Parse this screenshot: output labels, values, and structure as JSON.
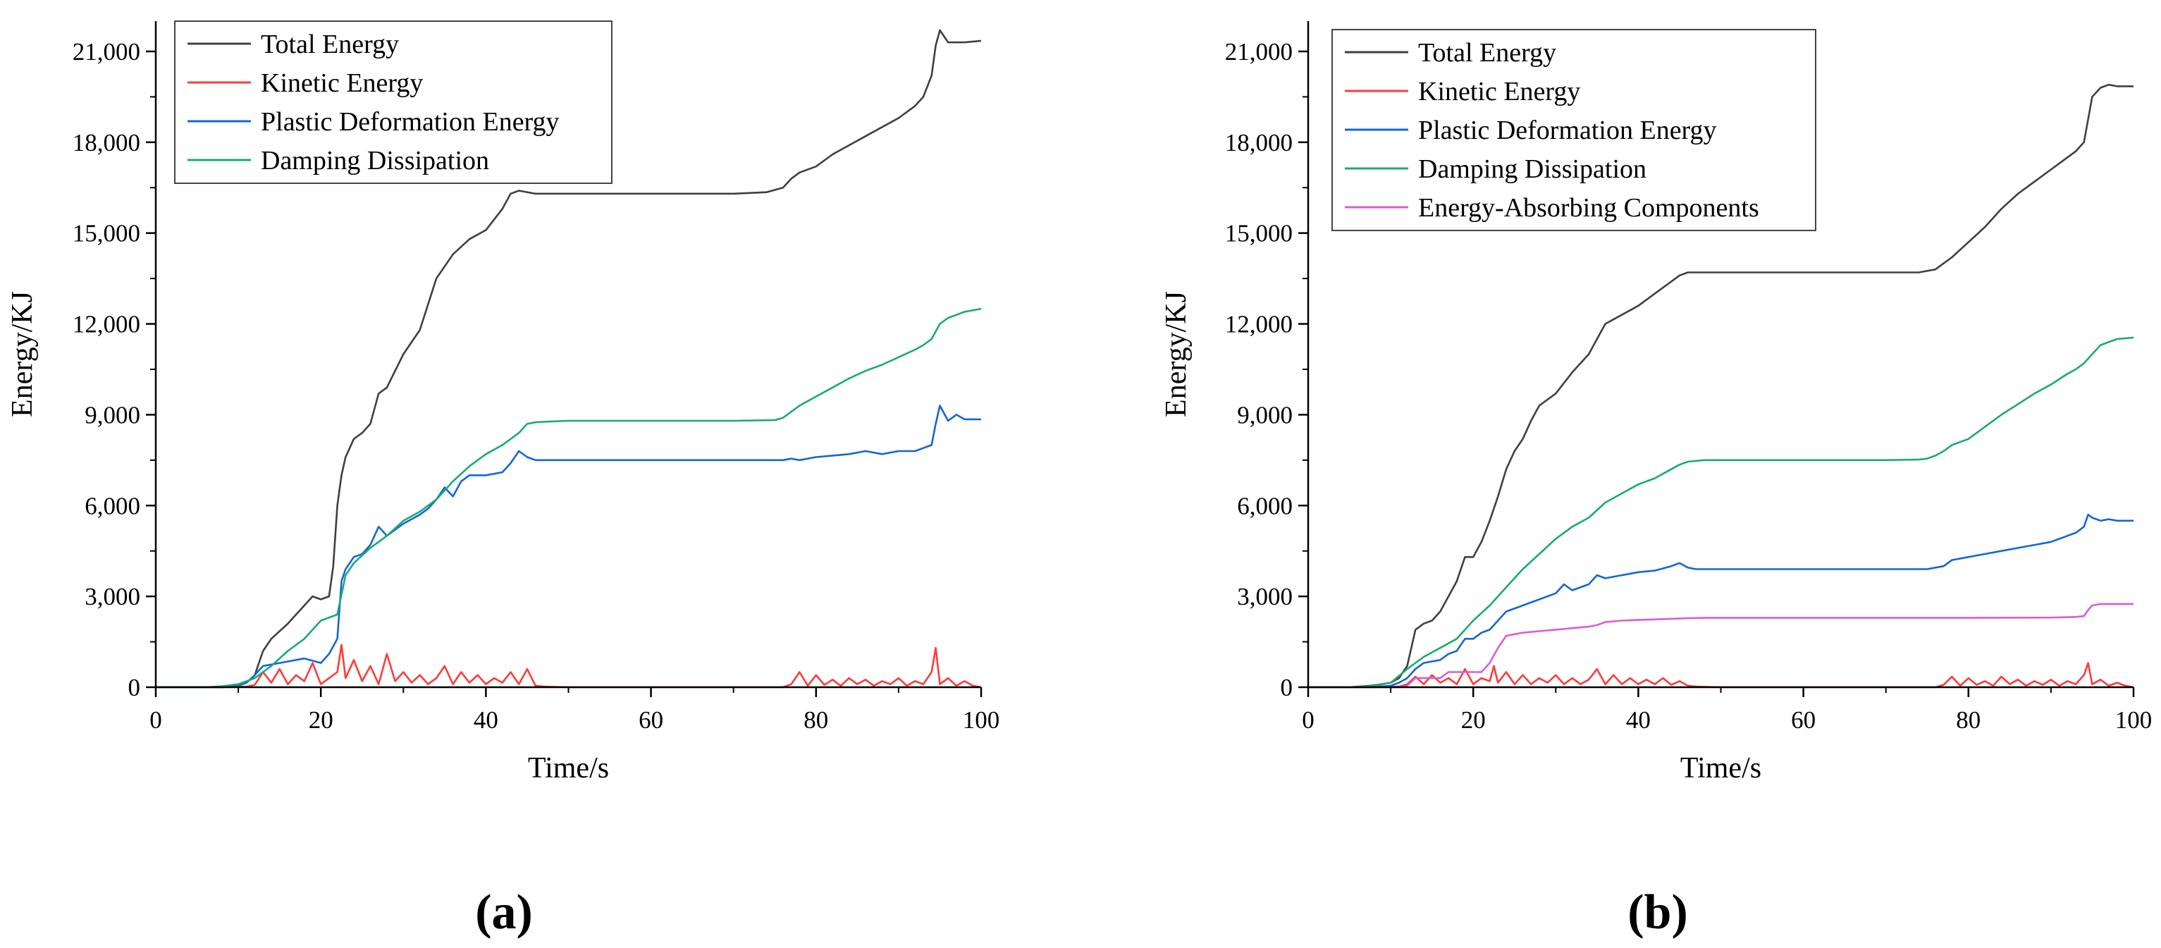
{
  "chart_data": [
    {
      "type": "line",
      "panel_label": "(a)",
      "title": "",
      "xlabel": "Time/s",
      "ylabel": "Energy/KJ",
      "xlim": [
        0,
        100
      ],
      "ylim": [
        0,
        22000
      ],
      "xticks": [
        0,
        20,
        40,
        60,
        80,
        100
      ],
      "yticks": [
        0,
        3000,
        6000,
        9000,
        12000,
        15000,
        18000,
        21000
      ],
      "xtick_labels": [
        "0",
        "20",
        "40",
        "60",
        "80",
        "100"
      ],
      "ytick_labels": [
        "0",
        "3,000",
        "6,000",
        "9,000",
        "12,000",
        "15,000",
        "18,000",
        "21,000"
      ],
      "grid": false,
      "legend_position": "top-left",
      "series": [
        {
          "name": "Total Energy",
          "color": "#404040",
          "x": [
            0,
            8,
            10,
            11,
            12,
            13,
            14,
            16,
            18,
            19,
            20,
            21,
            21.5,
            22,
            22.5,
            23,
            24,
            25,
            26,
            27,
            28,
            30,
            32,
            34,
            36,
            38,
            40,
            42,
            43,
            44,
            45,
            46,
            48,
            50,
            55,
            60,
            65,
            70,
            74,
            76,
            77,
            78,
            80,
            82,
            84,
            86,
            88,
            90,
            92,
            93,
            94,
            94.5,
            95,
            96,
            98,
            100
          ],
          "y": [
            0,
            0,
            60,
            150,
            400,
            1200,
            1600,
            2100,
            2700,
            3000,
            2900,
            3000,
            4000,
            6000,
            7000,
            7600,
            8200,
            8400,
            8700,
            9700,
            9900,
            11000,
            11800,
            13500,
            14300,
            14800,
            15100,
            15800,
            16300,
            16400,
            16350,
            16300,
            16300,
            16300,
            16300,
            16300,
            16300,
            16300,
            16350,
            16500,
            16800,
            17000,
            17200,
            17600,
            17900,
            18200,
            18500,
            18800,
            19200,
            19500,
            20200,
            21200,
            21700,
            21300,
            21300,
            21350
          ]
        },
        {
          "name": "Kinetic Energy",
          "color": "#ff3b3b",
          "x": [
            0,
            8,
            11,
            12,
            13,
            14,
            15,
            16,
            17,
            18,
            19,
            20,
            21,
            22,
            22.5,
            23,
            24,
            25,
            26,
            27,
            28,
            29,
            30,
            31,
            32,
            33,
            34,
            35,
            36,
            37,
            38,
            39,
            40,
            41,
            42,
            43,
            44,
            45,
            46,
            47,
            50,
            60,
            70,
            76,
            77,
            78,
            79,
            80,
            81,
            82,
            83,
            84,
            85,
            86,
            87,
            88,
            89,
            90,
            91,
            92,
            93,
            94,
            94.5,
            95,
            96,
            97,
            98,
            99,
            100
          ],
          "y": [
            0,
            0,
            20,
            80,
            500,
            150,
            600,
            100,
            400,
            200,
            800,
            100,
            300,
            500,
            1400,
            300,
            900,
            200,
            700,
            100,
            1100,
            200,
            500,
            150,
            400,
            100,
            300,
            700,
            100,
            500,
            150,
            400,
            100,
            300,
            150,
            500,
            100,
            600,
            50,
            20,
            0,
            0,
            0,
            0,
            100,
            500,
            50,
            400,
            80,
            250,
            50,
            300,
            100,
            250,
            50,
            200,
            100,
            300,
            50,
            200,
            100,
            500,
            1300,
            100,
            300,
            50,
            200,
            50,
            0
          ]
        },
        {
          "name": "Plastic Deformation Energy",
          "color": "#1566d4",
          "x": [
            0,
            8,
            10,
            11,
            12,
            13,
            14,
            16,
            18,
            20,
            21,
            22,
            22.5,
            23,
            24,
            25,
            26,
            27,
            28,
            30,
            32,
            33,
            34,
            35,
            36,
            37,
            38,
            40,
            42,
            43,
            44,
            45,
            46,
            48,
            50,
            60,
            70,
            76,
            77,
            78,
            80,
            82,
            84,
            86,
            88,
            90,
            92,
            93,
            94,
            94.5,
            95,
            96,
            97,
            98,
            100
          ],
          "y": [
            0,
            0,
            50,
            150,
            400,
            700,
            750,
            850,
            950,
            800,
            1100,
            1600,
            3500,
            3900,
            4300,
            4400,
            4700,
            5300,
            5000,
            5400,
            5700,
            5900,
            6200,
            6600,
            6300,
            6800,
            7000,
            7000,
            7100,
            7400,
            7800,
            7600,
            7500,
            7500,
            7500,
            7500,
            7500,
            7500,
            7550,
            7500,
            7600,
            7650,
            7700,
            7800,
            7700,
            7800,
            7800,
            7900,
            8000,
            8700,
            9300,
            8800,
            9000,
            8850,
            8850
          ]
        },
        {
          "name": "Damping Dissipation",
          "color": "#1aab73",
          "x": [
            0,
            6,
            8,
            10,
            12,
            14,
            16,
            18,
            20,
            22,
            23,
            24,
            26,
            28,
            30,
            32,
            34,
            36,
            38,
            40,
            42,
            44,
            45,
            46,
            48,
            50,
            60,
            70,
            75,
            76,
            77,
            78,
            80,
            82,
            84,
            86,
            88,
            90,
            92,
            93,
            94,
            95,
            96,
            98,
            100
          ],
          "y": [
            0,
            0,
            30,
            100,
            300,
            700,
            1200,
            1600,
            2200,
            2400,
            3700,
            4100,
            4600,
            5000,
            5500,
            5800,
            6200,
            6800,
            7300,
            7700,
            8000,
            8400,
            8700,
            8750,
            8780,
            8800,
            8800,
            8800,
            8820,
            8900,
            9100,
            9300,
            9600,
            9900,
            10200,
            10450,
            10650,
            10900,
            11150,
            11300,
            11500,
            12000,
            12200,
            12400,
            12500
          ]
        }
      ]
    },
    {
      "type": "line",
      "panel_label": "(b)",
      "title": "",
      "xlabel": "Time/s",
      "ylabel": "Energy/KJ",
      "xlim": [
        0,
        100
      ],
      "ylim": [
        0,
        22000
      ],
      "xticks": [
        0,
        20,
        40,
        60,
        80,
        100
      ],
      "yticks": [
        0,
        3000,
        6000,
        9000,
        12000,
        15000,
        18000,
        21000
      ],
      "xtick_labels": [
        "0",
        "20",
        "40",
        "60",
        "80",
        "100"
      ],
      "ytick_labels": [
        "0",
        "3,000",
        "6,000",
        "9,000",
        "12,000",
        "15,000",
        "18,000",
        "21,000"
      ],
      "grid": false,
      "legend_position": "top-left",
      "series": [
        {
          "name": "Total Energy",
          "color": "#404040",
          "x": [
            0,
            5,
            8,
            10,
            11,
            12,
            13,
            14,
            15,
            16,
            17,
            18,
            19,
            20,
            21,
            22,
            23,
            24,
            25,
            26,
            27,
            28,
            30,
            32,
            34,
            35,
            36,
            38,
            40,
            42,
            44,
            45,
            46,
            47,
            48,
            50,
            55,
            60,
            65,
            70,
            74,
            76,
            77,
            78,
            80,
            82,
            84,
            86,
            88,
            90,
            92,
            93,
            94,
            95,
            96,
            97,
            98,
            100
          ],
          "y": [
            0,
            0,
            60,
            150,
            300,
            700,
            1900,
            2100,
            2200,
            2500,
            3000,
            3500,
            4300,
            4300,
            4800,
            5500,
            6300,
            7200,
            7800,
            8200,
            8800,
            9300,
            9700,
            10400,
            11000,
            11500,
            12000,
            12300,
            12600,
            13000,
            13400,
            13600,
            13700,
            13700,
            13700,
            13700,
            13700,
            13700,
            13700,
            13700,
            13700,
            13800,
            14000,
            14200,
            14700,
            15200,
            15800,
            16300,
            16700,
            17100,
            17500,
            17700,
            18000,
            19500,
            19800,
            19900,
            19850,
            19850
          ]
        },
        {
          "name": "Kinetic Energy",
          "color": "#ff3b3b",
          "x": [
            0,
            8,
            11,
            12,
            13,
            14,
            15,
            16,
            17,
            18,
            19,
            20,
            21,
            22,
            22.5,
            23,
            24,
            25,
            26,
            27,
            28,
            29,
            30,
            31,
            32,
            33,
            34,
            35,
            36,
            37,
            38,
            39,
            40,
            41,
            42,
            43,
            44,
            45,
            46,
            47,
            50,
            60,
            70,
            76,
            77,
            78,
            79,
            80,
            81,
            82,
            83,
            84,
            85,
            86,
            87,
            88,
            89,
            90,
            91,
            92,
            93,
            94,
            94.5,
            95,
            96,
            97,
            98,
            99,
            100
          ],
          "y": [
            0,
            0,
            20,
            100,
            350,
            100,
            400,
            150,
            300,
            100,
            600,
            100,
            300,
            200,
            700,
            150,
            500,
            100,
            400,
            100,
            300,
            150,
            400,
            100,
            300,
            100,
            250,
            600,
            100,
            400,
            100,
            300,
            100,
            250,
            100,
            300,
            80,
            200,
            50,
            20,
            0,
            0,
            0,
            0,
            80,
            350,
            50,
            300,
            80,
            200,
            50,
            350,
            100,
            250,
            50,
            200,
            80,
            250,
            50,
            200,
            100,
            400,
            800,
            100,
            250,
            50,
            150,
            50,
            0
          ]
        },
        {
          "name": "Plastic Deformation Energy",
          "color": "#1566d4",
          "x": [
            0,
            8,
            10,
            11,
            12,
            13,
            14,
            16,
            17,
            18,
            19,
            20,
            21,
            22,
            23,
            24,
            26,
            28,
            30,
            31,
            32,
            34,
            35,
            36,
            38,
            40,
            42,
            44,
            45,
            46,
            47,
            48,
            50,
            60,
            70,
            75,
            76,
            77,
            78,
            80,
            82,
            84,
            86,
            88,
            90,
            92,
            93,
            94,
            94.5,
            95,
            96,
            97,
            98,
            100
          ],
          "y": [
            0,
            0,
            50,
            150,
            300,
            600,
            800,
            900,
            1100,
            1200,
            1600,
            1600,
            1800,
            1900,
            2200,
            2500,
            2700,
            2900,
            3100,
            3400,
            3200,
            3400,
            3700,
            3600,
            3700,
            3800,
            3850,
            4000,
            4100,
            3950,
            3900,
            3900,
            3900,
            3900,
            3900,
            3900,
            3950,
            4000,
            4200,
            4300,
            4400,
            4500,
            4600,
            4700,
            4800,
            5000,
            5100,
            5300,
            5700,
            5600,
            5500,
            5550,
            5500,
            5500
          ]
        },
        {
          "name": "Damping Dissipation",
          "color": "#1aab73",
          "x": [
            0,
            5,
            8,
            10,
            12,
            14,
            16,
            18,
            19,
            20,
            22,
            24,
            26,
            28,
            30,
            32,
            34,
            36,
            38,
            40,
            42,
            44,
            45,
            46,
            48,
            50,
            60,
            70,
            74,
            75,
            76,
            77,
            78,
            80,
            82,
            84,
            86,
            88,
            90,
            92,
            93,
            94,
            95,
            96,
            98,
            100
          ],
          "y": [
            0,
            0,
            40,
            150,
            600,
            1000,
            1300,
            1600,
            1900,
            2200,
            2700,
            3300,
            3900,
            4400,
            4900,
            5300,
            5600,
            6100,
            6400,
            6700,
            6900,
            7200,
            7350,
            7450,
            7500,
            7500,
            7500,
            7500,
            7520,
            7550,
            7650,
            7800,
            8000,
            8200,
            8600,
            9000,
            9350,
            9700,
            10000,
            10350,
            10500,
            10700,
            11000,
            11300,
            11500,
            11550
          ]
        },
        {
          "name": "Energy-Absorbing Components",
          "color": "#d65fd6",
          "x": [
            0,
            10,
            11,
            12,
            13,
            14,
            15,
            16,
            17,
            18,
            19,
            20,
            21,
            22,
            23,
            24,
            25,
            26,
            28,
            30,
            32,
            34,
            35,
            36,
            38,
            40,
            42,
            44,
            46,
            48,
            50,
            60,
            70,
            80,
            90,
            93,
            94,
            94.5,
            95,
            96,
            98,
            100
          ],
          "y": [
            0,
            0,
            0,
            50,
            300,
            300,
            300,
            300,
            500,
            500,
            500,
            500,
            500,
            800,
            1300,
            1700,
            1750,
            1800,
            1850,
            1900,
            1950,
            2000,
            2050,
            2150,
            2200,
            2220,
            2240,
            2260,
            2280,
            2290,
            2290,
            2290,
            2290,
            2290,
            2300,
            2320,
            2350,
            2550,
            2700,
            2750,
            2750,
            2750
          ]
        }
      ]
    }
  ]
}
